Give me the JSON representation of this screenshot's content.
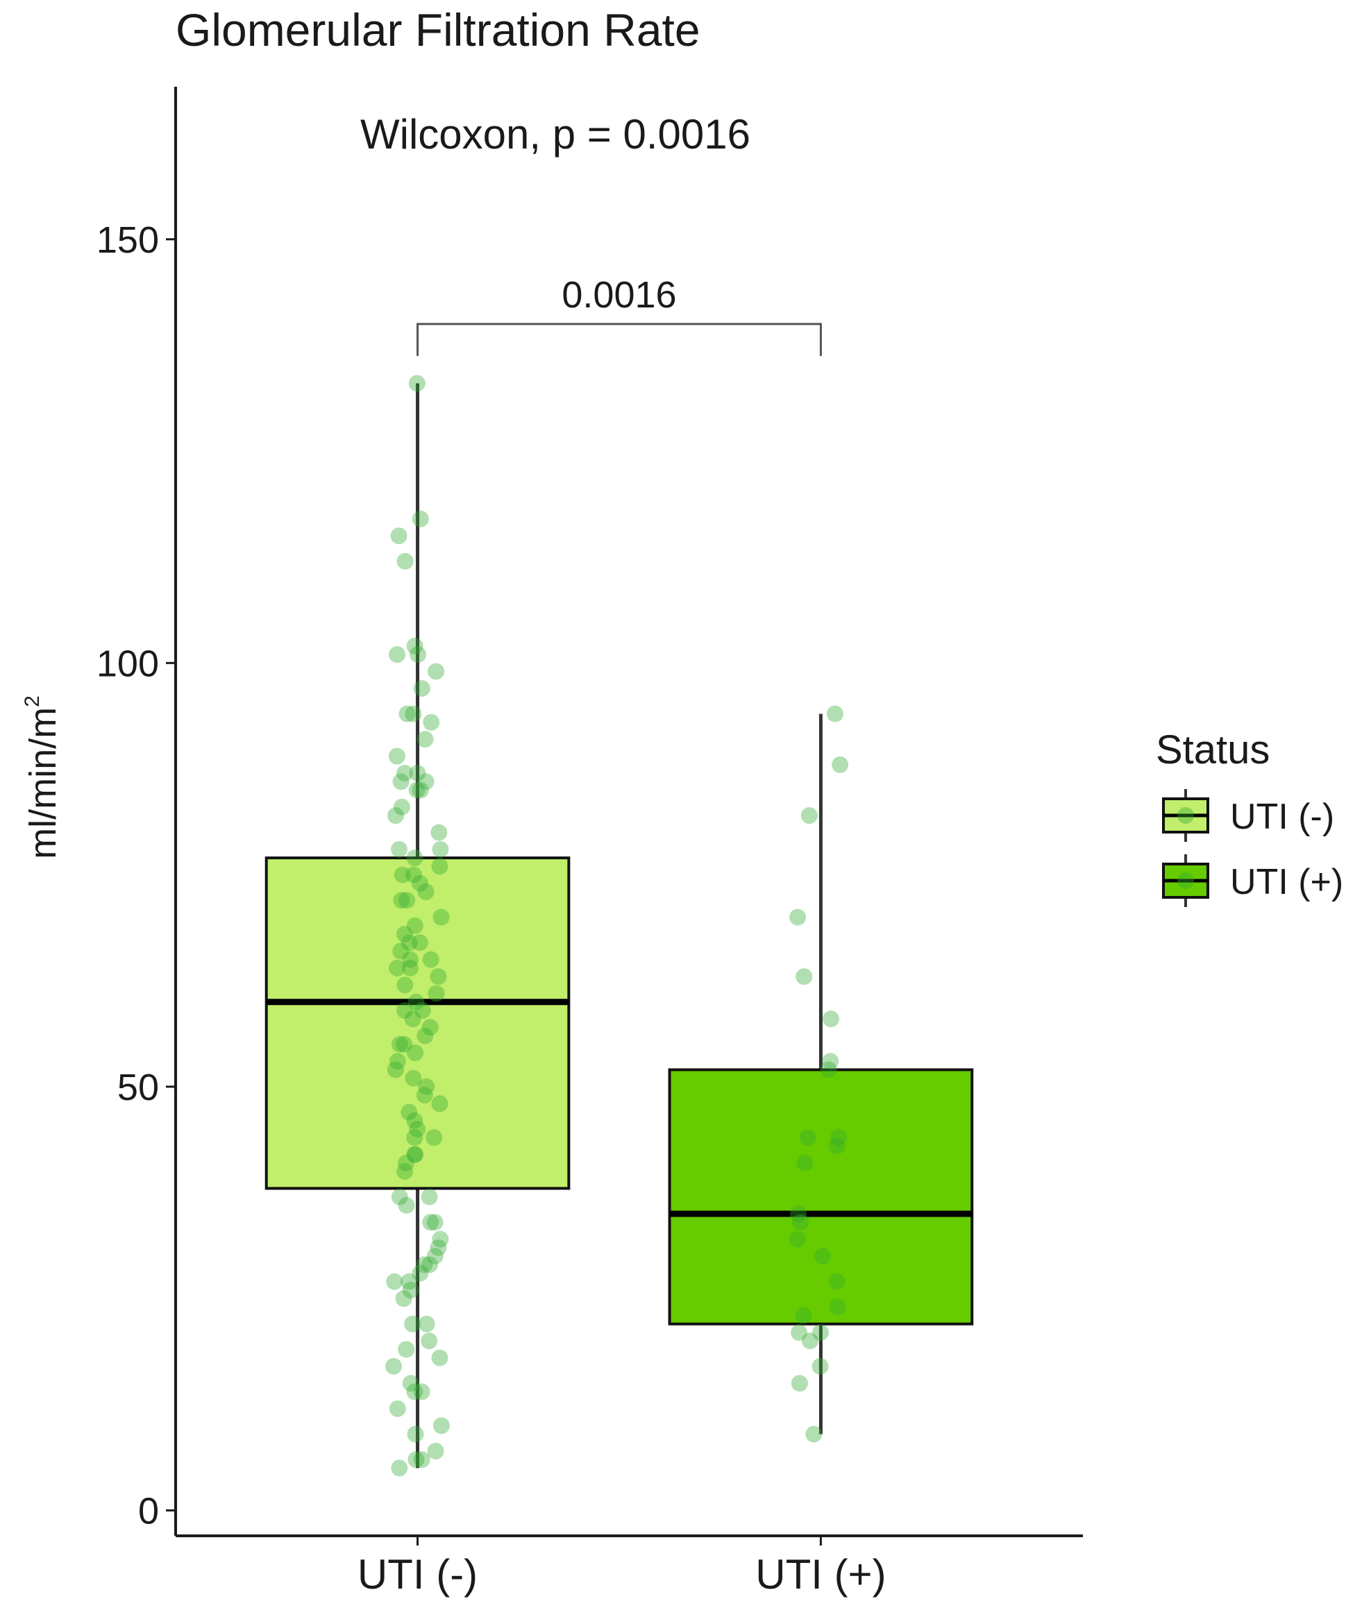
{
  "chart_data": {
    "type": "box",
    "title": "Glomerular Filtration Rate",
    "subtitle": "Wilcoxon, p = 0.0016",
    "ylabel": "ml/min/m",
    "ylabel_superscript": "2",
    "xlabel": "",
    "ylim": [
      -3,
      168
    ],
    "yticks": [
      0,
      50,
      100,
      150
    ],
    "categories": [
      "UTI (-)",
      "UTI (+)"
    ],
    "legend": {
      "title": "Status",
      "position": "right",
      "entries": [
        "UTI (-)",
        "UTI (+)"
      ]
    },
    "comparison": {
      "from": "UTI (-)",
      "to": "UTI (+)",
      "label": "0.0016",
      "y": 140
    },
    "colors": {
      "UTI (-)": "#c1ee6b",
      "UTI (+)": "#66cc00",
      "points": "#33aa33",
      "outline": "#111111"
    },
    "grid": false,
    "boxes": [
      {
        "group": "UTI (-)",
        "min": 5,
        "q1": 38,
        "median": 60,
        "q3": 77,
        "max": 133,
        "points": [
          133,
          117,
          115,
          112,
          102,
          101,
          101,
          99,
          97,
          94,
          94,
          93,
          91,
          89,
          87,
          87,
          86,
          86,
          85,
          85,
          83,
          82,
          80,
          78,
          78,
          77,
          76,
          75,
          75,
          74,
          73,
          72,
          72,
          70,
          69,
          68,
          67,
          67,
          66,
          65,
          65,
          64,
          64,
          63,
          62,
          61,
          60,
          59,
          59,
          58,
          57,
          56,
          55,
          55,
          54,
          53,
          52,
          51,
          50,
          49,
          48,
          47,
          46,
          45,
          44,
          44,
          42,
          42,
          41,
          40,
          37,
          37,
          36,
          34,
          34,
          32,
          31,
          30,
          29,
          29,
          28,
          27,
          27,
          26,
          25,
          22,
          22,
          20,
          19,
          18,
          17,
          15,
          14,
          14,
          12,
          10,
          9,
          7,
          6,
          6,
          5
        ]
      },
      {
        "group": "UTI (+)",
        "min": 9,
        "q1": 22,
        "median": 35,
        "q3": 52,
        "max": 94,
        "points": [
          94,
          88,
          82,
          70,
          63,
          58,
          53,
          52,
          44,
          44,
          43,
          41,
          35,
          34,
          32,
          30,
          27,
          24,
          23,
          21,
          21,
          20,
          17,
          15,
          9
        ]
      }
    ]
  }
}
